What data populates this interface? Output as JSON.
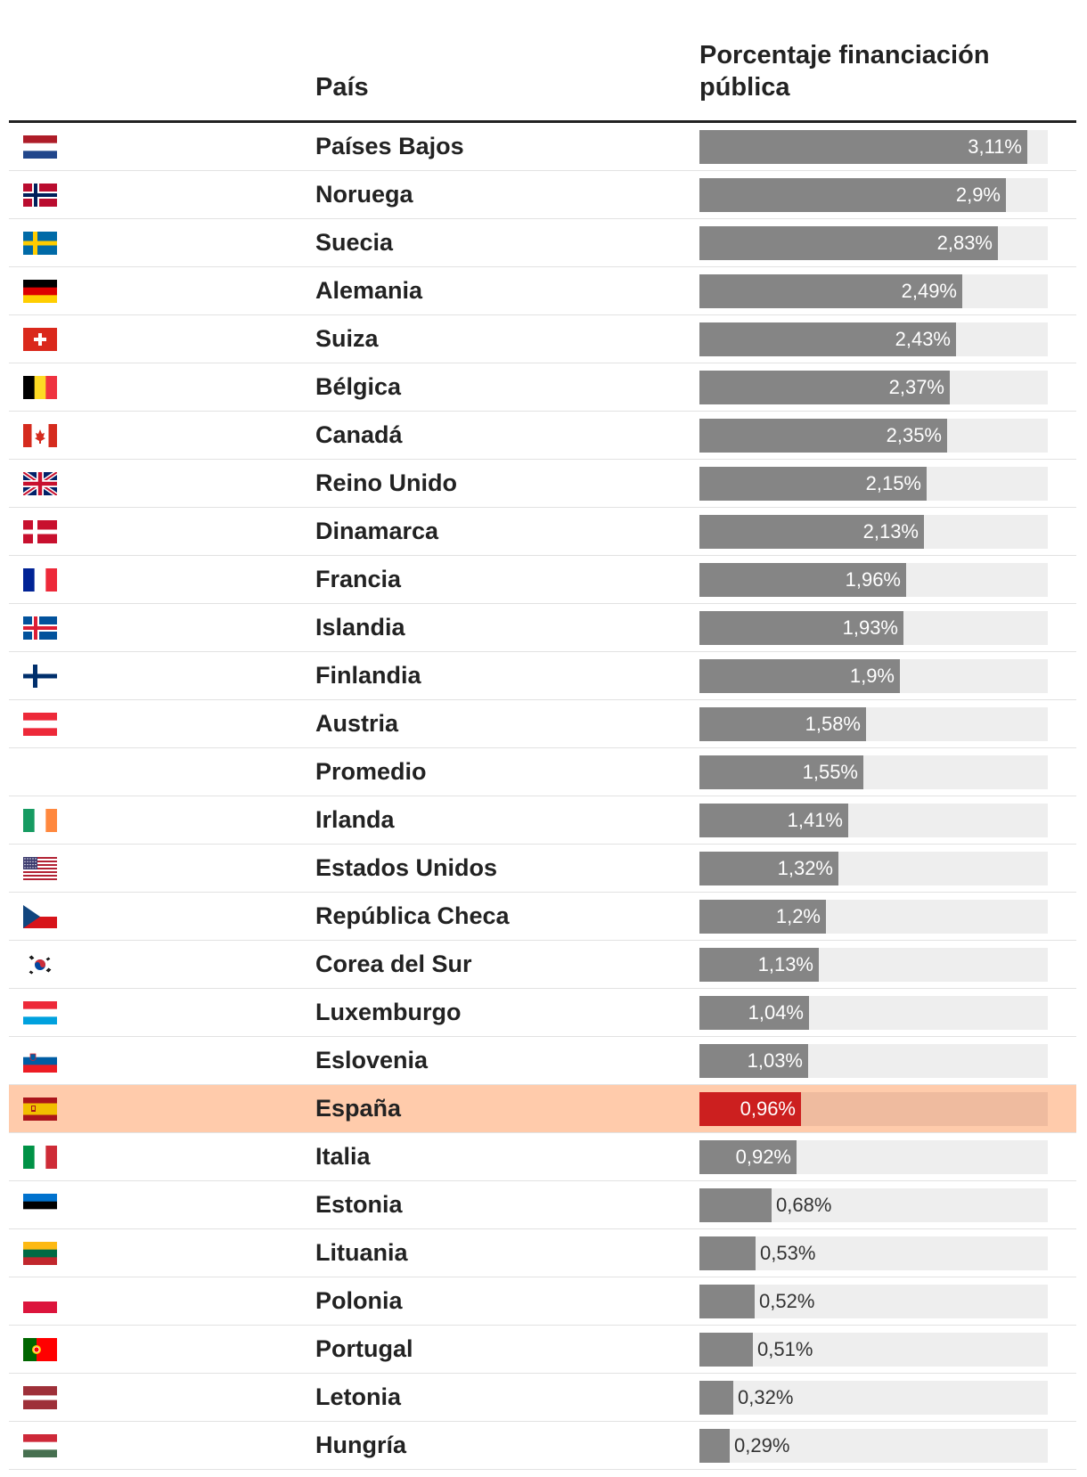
{
  "header": {
    "country_label": "País",
    "percentage_label": "Porcentaje financiación pública"
  },
  "colors": {
    "bar": "#858585",
    "track": "#eeeeee",
    "average_row": "#e2cd74",
    "average_bar": "#fff7a1",
    "spain_row": "#ffcbab",
    "spain_bar": "#cc1f1f"
  },
  "chart_data": {
    "type": "bar",
    "orientation": "horizontal",
    "xlim": [
      0,
      3.3
    ],
    "categories": [
      "Países Bajos",
      "Noruega",
      "Suecia",
      "Alemania",
      "Suiza",
      "Bélgica",
      "Canadá",
      "Reino Unido",
      "Dinamarca",
      "Francia",
      "Islandia",
      "Finlandia",
      "Austria",
      "Promedio",
      "Irlanda",
      "Estados Unidos",
      "República Checa",
      "Corea del Sur",
      "Luxemburgo",
      "Eslovenia",
      "España",
      "Italia",
      "Estonia",
      "Lituania",
      "Polonia",
      "Portugal",
      "Letonia",
      "Hungría"
    ],
    "values": [
      3.11,
      2.9,
      2.83,
      2.49,
      2.43,
      2.37,
      2.35,
      2.15,
      2.13,
      1.96,
      1.93,
      1.9,
      1.58,
      1.55,
      1.41,
      1.32,
      1.2,
      1.13,
      1.04,
      1.03,
      0.96,
      0.92,
      0.68,
      0.53,
      0.52,
      0.51,
      0.32,
      0.29
    ],
    "rows": [
      {
        "country": "Países Bajos",
        "value": 3.11,
        "label": "3,11%",
        "flag": "netherlands-flag"
      },
      {
        "country": "Noruega",
        "value": 2.9,
        "label": "2,9%",
        "flag": "norway-flag"
      },
      {
        "country": "Suecia",
        "value": 2.83,
        "label": "2,83%",
        "flag": "sweden-flag"
      },
      {
        "country": "Alemania",
        "value": 2.49,
        "label": "2,49%",
        "flag": "germany-flag"
      },
      {
        "country": "Suiza",
        "value": 2.43,
        "label": "2,43%",
        "flag": "switzerland-flag"
      },
      {
        "country": "Bélgica",
        "value": 2.37,
        "label": "2,37%",
        "flag": "belgium-flag"
      },
      {
        "country": "Canadá",
        "value": 2.35,
        "label": "2,35%",
        "flag": "canada-flag"
      },
      {
        "country": "Reino Unido",
        "value": 2.15,
        "label": "2,15%",
        "flag": "united-kingdom-flag"
      },
      {
        "country": "Dinamarca",
        "value": 2.13,
        "label": "2,13%",
        "flag": "denmark-flag"
      },
      {
        "country": "Francia",
        "value": 1.96,
        "label": "1,96%",
        "flag": "france-flag"
      },
      {
        "country": "Islandia",
        "value": 1.93,
        "label": "1,93%",
        "flag": "iceland-flag"
      },
      {
        "country": "Finlandia",
        "value": 1.9,
        "label": "1,9%",
        "flag": "finland-flag"
      },
      {
        "country": "Austria",
        "value": 1.58,
        "label": "1,58%",
        "flag": "austria-flag"
      },
      {
        "country": "Promedio",
        "value": 1.55,
        "label": "1,55%",
        "flag": "",
        "highlight": "average"
      },
      {
        "country": "Irlanda",
        "value": 1.41,
        "label": "1,41%",
        "flag": "ireland-flag"
      },
      {
        "country": "Estados Unidos",
        "value": 1.32,
        "label": "1,32%",
        "flag": "united-states-flag"
      },
      {
        "country": "República Checa",
        "value": 1.2,
        "label": "1,2%",
        "flag": "czech-republic-flag"
      },
      {
        "country": "Corea del Sur",
        "value": 1.13,
        "label": "1,13%",
        "flag": "south-korea-flag"
      },
      {
        "country": "Luxemburgo",
        "value": 1.04,
        "label": "1,04%",
        "flag": "luxembourg-flag"
      },
      {
        "country": "Eslovenia",
        "value": 1.03,
        "label": "1,03%",
        "flag": "slovenia-flag"
      },
      {
        "country": "España",
        "value": 0.96,
        "label": "0,96%",
        "flag": "spain-flag",
        "highlight": "spain"
      },
      {
        "country": "Italia",
        "value": 0.92,
        "label": "0,92%",
        "flag": "italy-flag"
      },
      {
        "country": "Estonia",
        "value": 0.68,
        "label": "0,68%",
        "flag": "estonia-flag"
      },
      {
        "country": "Lituania",
        "value": 0.53,
        "label": "0,53%",
        "flag": "lithuania-flag"
      },
      {
        "country": "Polonia",
        "value": 0.52,
        "label": "0,52%",
        "flag": "poland-flag"
      },
      {
        "country": "Portugal",
        "value": 0.51,
        "label": "0,51%",
        "flag": "portugal-flag"
      },
      {
        "country": "Letonia",
        "value": 0.32,
        "label": "0,32%",
        "flag": "latvia-flag"
      },
      {
        "country": "Hungría",
        "value": 0.29,
        "label": "0,29%",
        "flag": "hungary-flag"
      }
    ]
  }
}
